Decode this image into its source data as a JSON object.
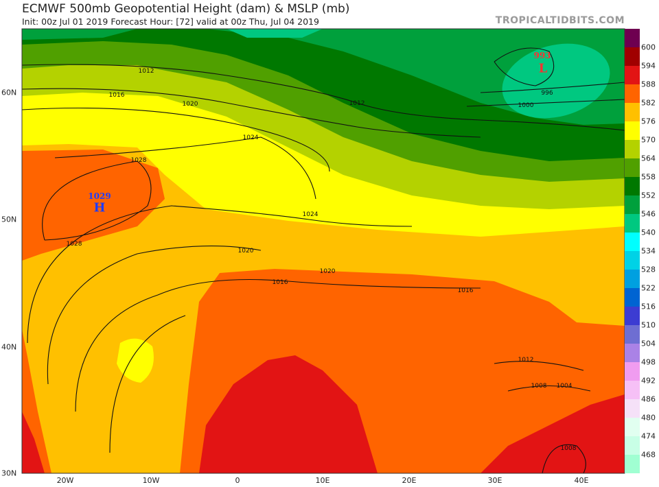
{
  "header": {
    "title": "ECMWF 500mb Geopotential Height (dam) & MSLP (mb)",
    "subtitle": "Init: 00z Jul 01 2019   Forecast Hour: [72]   valid at 00z Thu, Jul 04 2019",
    "brand": "TROPICALTIDBITS.COM"
  },
  "lat_labels": [
    "60N",
    "50N",
    "40N",
    "30N"
  ],
  "lon_labels": [
    "20W",
    "10W",
    "0",
    "10E",
    "20E",
    "30E",
    "40E"
  ],
  "colorbar": {
    "labels": [
      "600",
      "594",
      "588",
      "582",
      "576",
      "570",
      "564",
      "558",
      "552",
      "546",
      "540",
      "534",
      "528",
      "522",
      "516",
      "510",
      "504",
      "498",
      "492",
      "486",
      "480",
      "474",
      "468"
    ],
    "colors": [
      "#6e0050",
      "#a00000",
      "#e21414",
      "#ff6400",
      "#ffc000",
      "#ffff00",
      "#b4d200",
      "#50a000",
      "#007800",
      "#00a03c",
      "#00c880",
      "#00ffff",
      "#00d2e6",
      "#00a0e0",
      "#0064d2",
      "#3c3cd2",
      "#6e6ed2",
      "#aa82e6",
      "#f09cf0",
      "#f6c0f6",
      "#f5e1f8",
      "#e1fff0",
      "#c8ffe6",
      "#a0ffd2"
    ]
  },
  "centers": {
    "high": {
      "value": "1029",
      "letter": "H",
      "color": "#1e3cff"
    },
    "low": {
      "value": "993",
      "letter": "L",
      "color": "#ff3030"
    }
  },
  "isobar_labels": [
    "1012",
    "1016",
    "1020",
    "1024",
    "1028",
    "1028",
    "1024",
    "1020",
    "1016",
    "1020",
    "1016",
    "1012",
    "1012",
    "1008",
    "1004",
    "1008",
    "1000",
    "996"
  ]
}
